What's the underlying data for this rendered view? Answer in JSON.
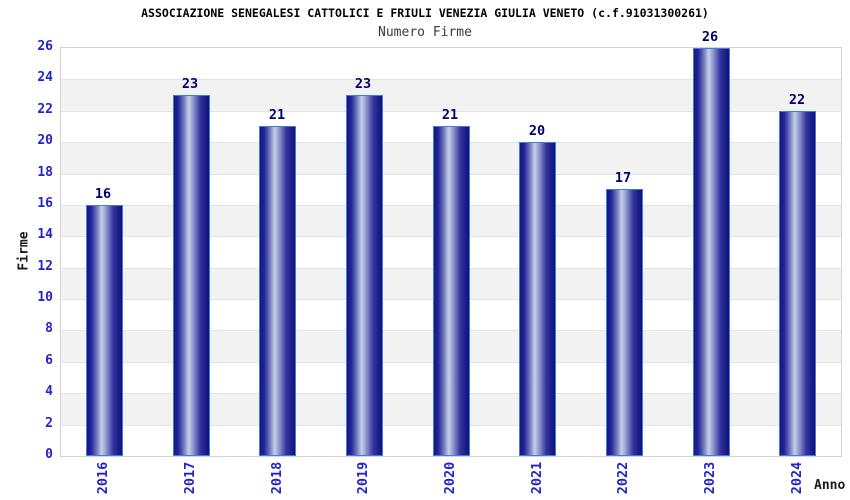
{
  "header": {
    "title": "ASSOCIAZIONE SENEGALESI CATTOLICI E FRIULI VENEZIA GIULIA VENETO (c.f.91031300261)",
    "subtitle": "Numero Firme"
  },
  "chart_data": {
    "type": "bar",
    "title": "ASSOCIAZIONE SENEGALESI CATTOLICI E FRIULI VENEZIA GIULIA VENETO (c.f.91031300261)",
    "subtitle": "Numero Firme",
    "categories": [
      "2016",
      "2017",
      "2018",
      "2019",
      "2020",
      "2021",
      "2022",
      "2023",
      "2024"
    ],
    "values": [
      16,
      23,
      21,
      23,
      21,
      20,
      17,
      26,
      22
    ],
    "xlabel": "Anno",
    "ylabel": "Firme",
    "ylim": [
      0,
      26
    ],
    "ytick_step": 2,
    "yticks": [
      0,
      2,
      4,
      6,
      8,
      10,
      12,
      14,
      16,
      18,
      20,
      22,
      24,
      26
    ],
    "grid": "horizontal-bands",
    "legend_position": "none"
  },
  "colors": {
    "background": "#ffffff",
    "tick_label_blue": "#2323cc",
    "value_label_navy": "#00006e",
    "axis_title_color": "#1a1a1a",
    "subtitle_color": "#3c3c3c",
    "band_light": "#ffffff",
    "band_dark": "#f2f2f2",
    "grid_line": "#e4e4e4",
    "plot_border": "#d4d4d4",
    "bar_border_blue": "#3e7ee2",
    "bar_gradient_stops": [
      [
        "#16167f",
        "0%"
      ],
      [
        "#23239b",
        "12%"
      ],
      [
        "#7a84c0",
        "30%"
      ],
      [
        "#c9cfe9",
        "42%"
      ],
      [
        "#9ba4d4",
        "52%"
      ],
      [
        "#34349e",
        "75%"
      ],
      [
        "#10107a",
        "100%"
      ]
    ]
  }
}
